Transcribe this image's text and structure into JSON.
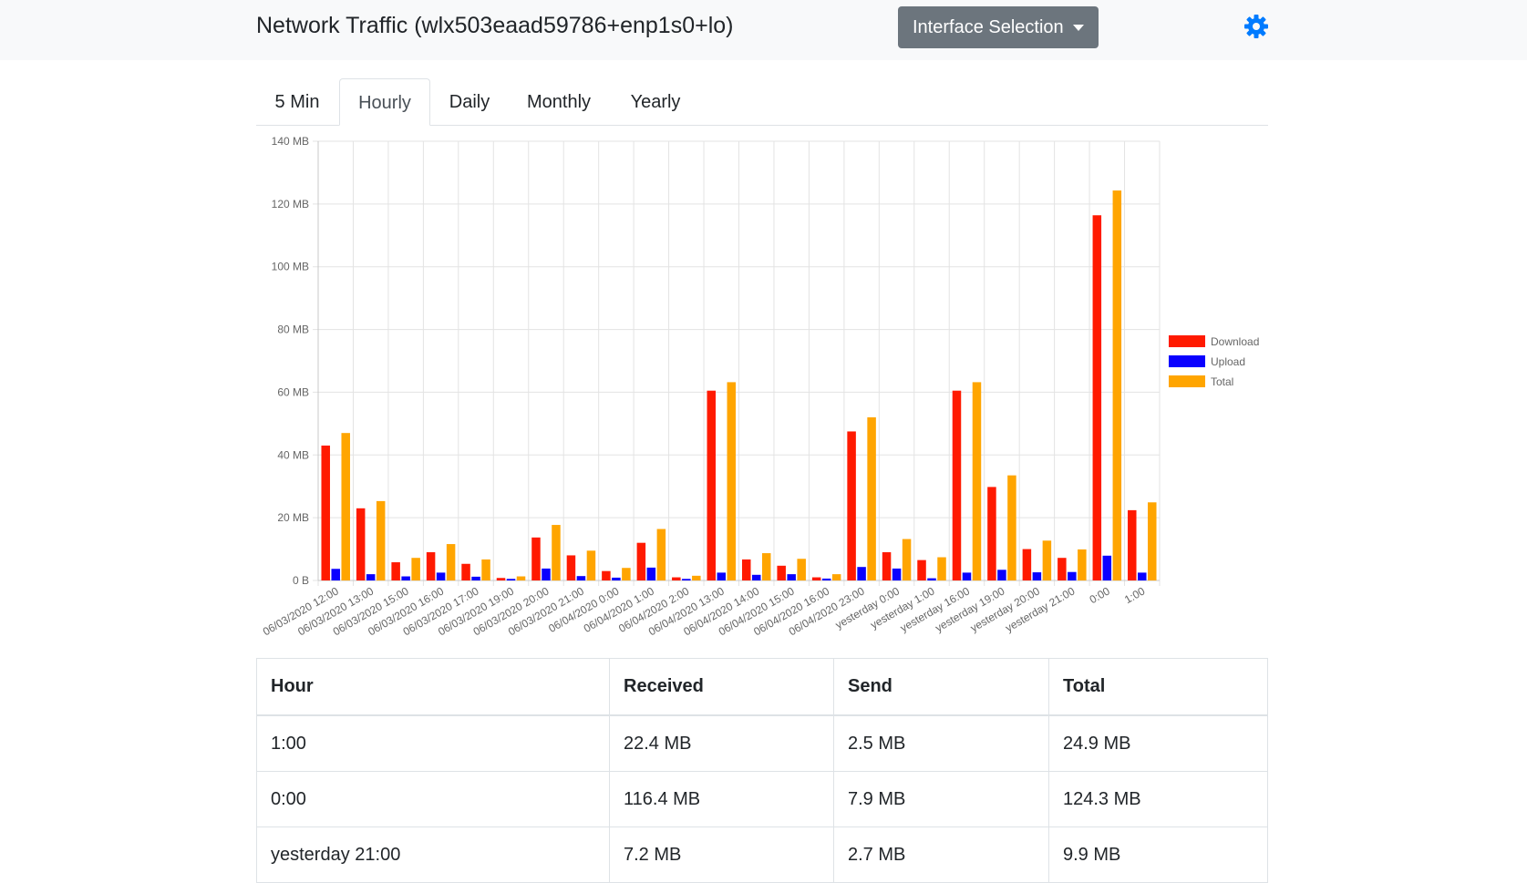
{
  "header": {
    "title": "Network Traffic (wlx503eaad59786+enp1s0+lo)",
    "interface_button": "Interface Selection",
    "accent": "#007bff"
  },
  "tabs": [
    {
      "label": "5 Min",
      "active": false
    },
    {
      "label": "Hourly",
      "active": true
    },
    {
      "label": "Daily",
      "active": false
    },
    {
      "label": "Monthly",
      "active": false
    },
    {
      "label": "Yearly",
      "active": false
    }
  ],
  "chart_data": {
    "type": "bar",
    "categories": [
      "06/03/2020 12:00",
      "06/03/2020 13:00",
      "06/03/2020 15:00",
      "06/03/2020 16:00",
      "06/03/2020 17:00",
      "06/03/2020 19:00",
      "06/03/2020 20:00",
      "06/03/2020 21:00",
      "06/04/2020 0:00",
      "06/04/2020 1:00",
      "06/04/2020 2:00",
      "06/04/2020 13:00",
      "06/04/2020 14:00",
      "06/04/2020 15:00",
      "06/04/2020 16:00",
      "06/04/2020 23:00",
      "yesterday 0:00",
      "yesterday 1:00",
      "yesterday 16:00",
      "yesterday 19:00",
      "yesterday 20:00",
      "yesterday 21:00",
      "0:00",
      "1:00"
    ],
    "series": [
      {
        "name": "Download",
        "color": "#ff1a00",
        "values": [
          43,
          23,
          5.8,
          9,
          5.3,
          0.8,
          13.7,
          8,
          3,
          12,
          1,
          60.5,
          6.7,
          4.7,
          1,
          47.5,
          9,
          6.5,
          60.5,
          29.8,
          10,
          7.2,
          116.4,
          22.4
        ]
      },
      {
        "name": "Upload",
        "color": "#0a00ff",
        "values": [
          3.7,
          2,
          1.3,
          2.5,
          1.2,
          0.5,
          3.8,
          1.4,
          0.9,
          4.1,
          0.5,
          2.5,
          1.8,
          2,
          0.6,
          4.3,
          3.8,
          0.7,
          2.5,
          3.4,
          2.6,
          2.7,
          7.9,
          2.5
        ]
      },
      {
        "name": "Total",
        "color": "#ffa500",
        "values": [
          47,
          25.3,
          7.2,
          11.6,
          6.7,
          1.3,
          17.7,
          9.5,
          4,
          16.4,
          1.5,
          63.2,
          8.7,
          6.9,
          2,
          52,
          13.2,
          7.4,
          63.2,
          33.5,
          12.7,
          9.9,
          124.3,
          24.9
        ]
      }
    ],
    "y_ticks": [
      "0 B",
      "20 MB",
      "40 MB",
      "60 MB",
      "80 MB",
      "100 MB",
      "120 MB",
      "140 MB"
    ],
    "ylim": [
      0,
      140
    ],
    "grid": true,
    "legend_position": "right"
  },
  "table": {
    "headers": [
      "Hour",
      "Received",
      "Send",
      "Total"
    ],
    "rows": [
      [
        "1:00",
        "22.4 MB",
        "2.5 MB",
        "24.9 MB"
      ],
      [
        "0:00",
        "116.4 MB",
        "7.9 MB",
        "124.3 MB"
      ],
      [
        "yesterday 21:00",
        "7.2 MB",
        "2.7 MB",
        "9.9 MB"
      ]
    ]
  }
}
